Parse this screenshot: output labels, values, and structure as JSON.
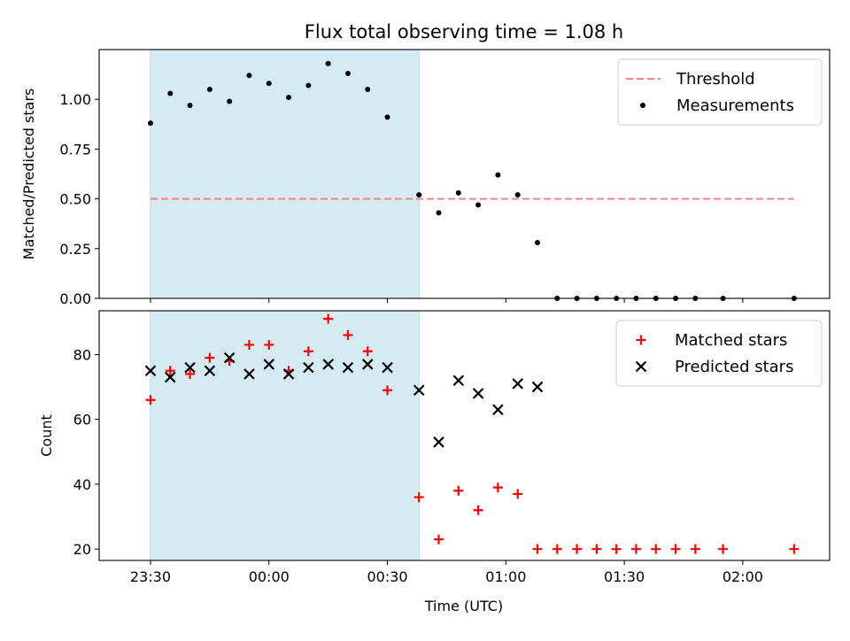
{
  "title": "Flux total observing time = 1.08 h",
  "chart_data": [
    {
      "type": "scatter",
      "ylabel": "Matched/Predicted stars",
      "ylim": [
        0,
        1.25
      ],
      "yticks": [
        "0.00",
        "0.25",
        "0.50",
        "0.75",
        "1.00"
      ],
      "ytick_values": [
        0,
        0.25,
        0.5,
        0.75,
        1.0
      ],
      "legend_position": "top-right",
      "threshold": {
        "name": "Threshold",
        "value": 0.5,
        "x_start": "23:30",
        "x_end": "02:13",
        "color": "#ff7f7f"
      },
      "series": [
        {
          "name": "Measurements",
          "color": "#000000",
          "marker": "dot",
          "x": [
            "23:30",
            "23:35",
            "23:40",
            "23:45",
            "23:50",
            "23:55",
            "00:00",
            "00:05",
            "00:10",
            "00:15",
            "00:20",
            "00:25",
            "00:30",
            "00:38",
            "00:43",
            "00:48",
            "00:53",
            "00:58",
            "01:03",
            "01:08",
            "01:13",
            "01:18",
            "01:23",
            "01:28",
            "01:33",
            "01:38",
            "01:43",
            "01:48",
            "01:55",
            "02:13"
          ],
          "y": [
            0.88,
            1.03,
            0.97,
            1.05,
            0.99,
            1.12,
            1.08,
            1.01,
            1.07,
            1.18,
            1.13,
            1.05,
            0.91,
            0.52,
            0.43,
            0.53,
            0.47,
            0.62,
            0.52,
            0.28,
            0,
            0,
            0,
            0,
            0,
            0,
            0,
            0,
            0,
            0
          ]
        }
      ]
    },
    {
      "type": "scatter",
      "xlabel": "Time (UTC)",
      "ylabel": "Count",
      "ylim": [
        16.5,
        93.5
      ],
      "yticks": [
        "20",
        "40",
        "60",
        "80"
      ],
      "ytick_values": [
        20,
        40,
        60,
        80
      ],
      "legend_position": "top-right",
      "series": [
        {
          "name": "Matched stars",
          "color": "#ff0000",
          "marker": "plus",
          "x": [
            "23:30",
            "23:35",
            "23:40",
            "23:45",
            "23:50",
            "23:55",
            "00:00",
            "00:05",
            "00:10",
            "00:15",
            "00:20",
            "00:25",
            "00:30",
            "00:38",
            "00:43",
            "00:48",
            "00:53",
            "00:58",
            "01:03",
            "01:08",
            "01:13",
            "01:18",
            "01:23",
            "01:28",
            "01:33",
            "01:38",
            "01:43",
            "01:48",
            "01:55",
            "02:13"
          ],
          "y": [
            66,
            75,
            74,
            79,
            78,
            83,
            83,
            75,
            81,
            91,
            86,
            81,
            69,
            36,
            23,
            38,
            32,
            39,
            37,
            20,
            20,
            20,
            20,
            20,
            20,
            20,
            20,
            20,
            20,
            20
          ]
        },
        {
          "name": "Predicted stars",
          "color": "#000000",
          "marker": "x",
          "x": [
            "23:30",
            "23:35",
            "23:40",
            "23:45",
            "23:50",
            "23:55",
            "00:00",
            "00:05",
            "00:10",
            "00:15",
            "00:20",
            "00:25",
            "00:30",
            "00:38",
            "00:43",
            "00:48",
            "00:53",
            "00:58",
            "01:03",
            "01:08"
          ],
          "y": [
            75,
            73,
            76,
            75,
            79,
            74,
            77,
            74,
            76,
            77,
            76,
            77,
            76,
            69,
            53,
            72,
            68,
            63,
            71,
            70
          ]
        }
      ]
    }
  ],
  "x_axis": {
    "range": [
      "23:17",
      "02:22"
    ],
    "ticks": [
      "23:30",
      "00:00",
      "00:30",
      "01:00",
      "01:30",
      "02:00"
    ]
  },
  "observing_window": {
    "start": "23:30",
    "end": "00:38",
    "color": "#add8e6"
  }
}
